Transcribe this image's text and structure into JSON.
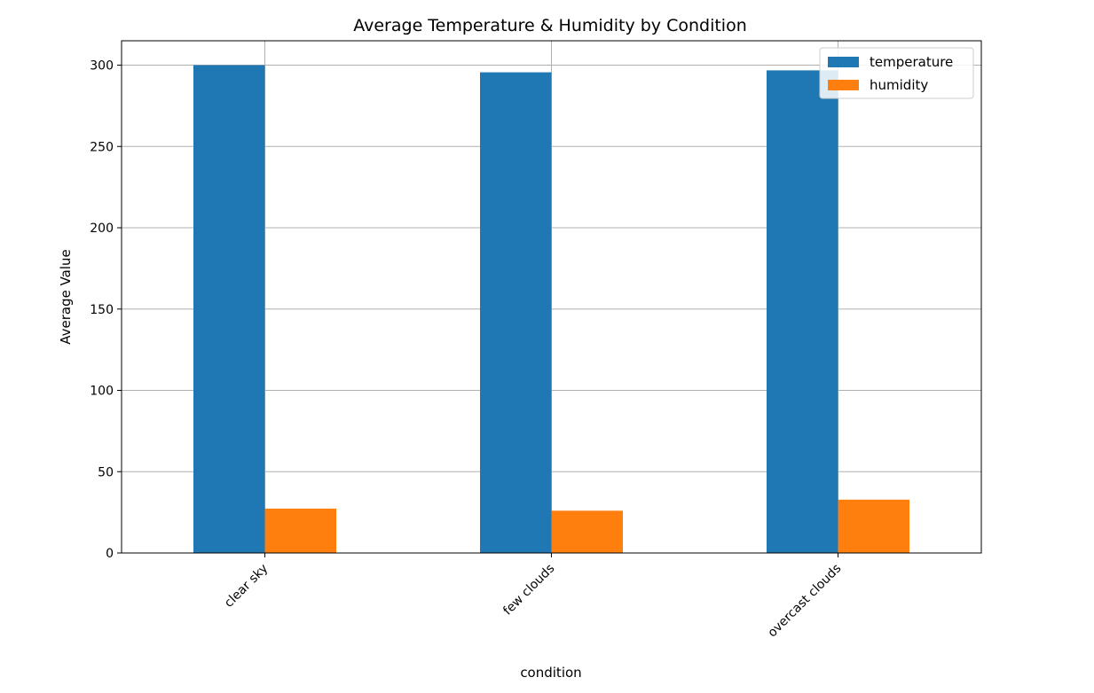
{
  "chart_data": {
    "type": "bar",
    "title": "Average Temperature & Humidity by Condition",
    "xlabel": "condition",
    "ylabel": "Average Value",
    "categories": [
      "clear sky",
      "few clouds",
      "overcast clouds"
    ],
    "series": [
      {
        "name": "temperature",
        "color": "#1f77b4",
        "values": [
          300.0,
          295.6,
          296.8
        ]
      },
      {
        "name": "humidity",
        "color": "#ff7f0e",
        "values": [
          27.3,
          26.0,
          32.8
        ]
      }
    ],
    "ylim": [
      0,
      315
    ],
    "yticks": [
      0,
      50,
      100,
      150,
      200,
      250,
      300
    ],
    "ytick_labels": [
      "0",
      "50",
      "100",
      "150",
      "200",
      "250",
      "300"
    ],
    "grid": true,
    "legend_position": "upper-right"
  }
}
